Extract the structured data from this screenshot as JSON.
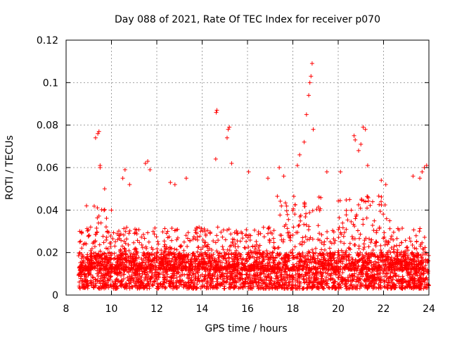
{
  "chart_data": {
    "type": "scatter",
    "title": "Day 088 of 2021, Rate Of TEC Index for receiver p070",
    "xlabel": "GPS time / hours",
    "ylabel": "ROTI / TECUs",
    "xlim": [
      8,
      24
    ],
    "ylim": [
      0,
      0.12
    ],
    "xticks": [
      8,
      10,
      12,
      14,
      16,
      18,
      20,
      22,
      24
    ],
    "xtick_labels": [
      "8",
      "10",
      "12",
      "14",
      "16",
      "18",
      "20",
      "22",
      "24"
    ],
    "yticks": [
      0,
      0.02,
      0.04,
      0.06,
      0.08,
      0.1,
      0.12
    ],
    "ytick_labels": [
      "0",
      "0.02",
      "0.04",
      "0.06",
      "0.08",
      "0.1",
      "0.12"
    ],
    "grid": true,
    "legend": "none",
    "marker": "+",
    "color": "#ff0000",
    "series": [
      {
        "name": "ROTI",
        "x": [
          8.6,
          8.9,
          9.3,
          9.4,
          9.45,
          9.5,
          9.5,
          9.7,
          10.0,
          10.5,
          10.6,
          10.8,
          11.5,
          11.6,
          11.7,
          12.6,
          12.8,
          13.3,
          14.6,
          14.62,
          14.65,
          15.1,
          15.15,
          15.2,
          15.3,
          16.05,
          16.9,
          17.4,
          17.6,
          18.2,
          18.3,
          18.5,
          18.6,
          18.7,
          18.75,
          18.8,
          18.85,
          18.9,
          19.5,
          20.1,
          20.7,
          20.75,
          20.9,
          21.0,
          21.1,
          21.2,
          21.3,
          21.9,
          22.1,
          23.3,
          23.6,
          23.7,
          23.8,
          23.9
        ],
        "y": [
          0.03,
          0.042,
          0.074,
          0.076,
          0.077,
          0.061,
          0.06,
          0.05,
          0.04,
          0.055,
          0.059,
          0.052,
          0.062,
          0.063,
          0.059,
          0.053,
          0.052,
          0.055,
          0.064,
          0.086,
          0.087,
          0.074,
          0.078,
          0.079,
          0.062,
          0.058,
          0.055,
          0.06,
          0.056,
          0.061,
          0.066,
          0.072,
          0.085,
          0.094,
          0.1,
          0.103,
          0.109,
          0.078,
          0.058,
          0.058,
          0.075,
          0.073,
          0.068,
          0.071,
          0.079,
          0.078,
          0.061,
          0.054,
          0.052,
          0.056,
          0.055,
          0.058,
          0.06,
          0.061
        ]
      }
    ],
    "dense_bands": [
      {
        "x_range": [
          8.55,
          24.0
        ],
        "y_range": [
          0.003,
          0.02
        ],
        "note": "dense cloud of points throughout the day"
      }
    ]
  }
}
